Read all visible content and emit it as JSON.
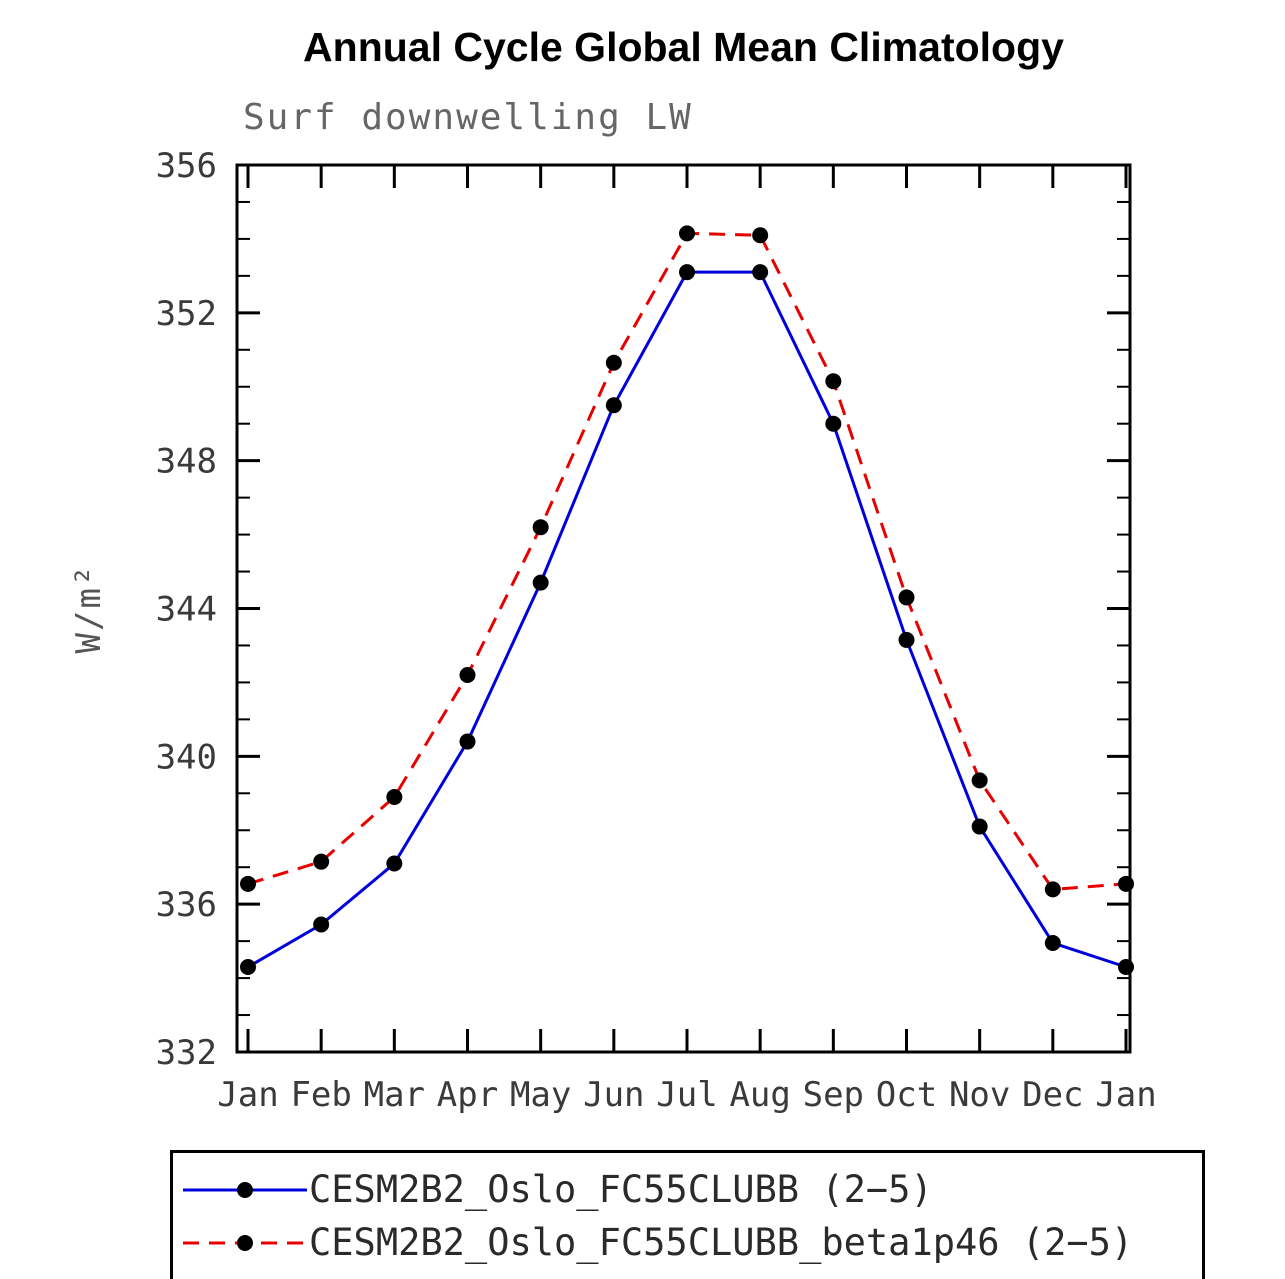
{
  "chart_data": {
    "type": "line",
    "title": "Annual Cycle Global Mean Climatology",
    "subtitle": "Surf downwelling LW",
    "ylabel": "W/m²",
    "xlabel": "",
    "x_categories": [
      "Jan",
      "Feb",
      "Mar",
      "Apr",
      "May",
      "Jun",
      "Jul",
      "Aug",
      "Sep",
      "Oct",
      "Nov",
      "Dec",
      "Jan"
    ],
    "ylim": [
      332,
      356
    ],
    "ytick_major": [
      332,
      336,
      340,
      344,
      348,
      352,
      356
    ],
    "ytick_minor_step": 1,
    "grid": "off",
    "legend_position": "bottom-left-box",
    "series": [
      {
        "name": "CESM2B2_Oslo_FC55CLUBB (2−5)",
        "color": "#0000dd",
        "style": "solid",
        "marker": "circle",
        "marker_color": "#000000",
        "values": [
          334.3,
          335.45,
          337.1,
          340.4,
          344.7,
          349.5,
          353.1,
          353.1,
          349.0,
          343.15,
          338.1,
          334.95,
          334.3
        ]
      },
      {
        "name": "CESM2B2_Oslo_FC55CLUBB_beta1p46 (2−5)",
        "color": "#e80000",
        "style": "dashed",
        "marker": "circle",
        "marker_color": "#000000",
        "values": [
          336.55,
          337.15,
          338.9,
          342.2,
          346.2,
          350.65,
          354.15,
          354.1,
          350.15,
          344.3,
          339.35,
          336.4,
          336.55
        ]
      }
    ]
  }
}
